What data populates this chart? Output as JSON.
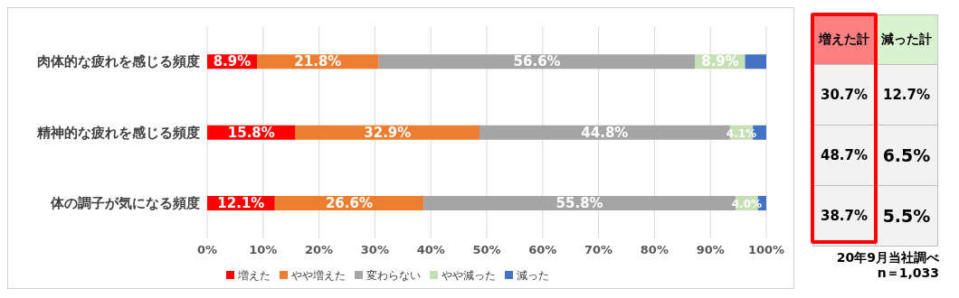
{
  "chart_data": [
    {
      "type": "bar",
      "orientation": "horizontal",
      "stacked": true,
      "categories": [
        "肉体的な疲れを感じる頻度",
        "精神的な疲れを感じる頻度",
        "体の調子が気になる頻度"
      ],
      "series": [
        {
          "name": "増えた",
          "color": "#ff0000",
          "values": [
            8.9,
            15.8,
            12.1
          ],
          "value_labels": [
            "8.9%",
            "15.8%",
            "12.1%"
          ]
        },
        {
          "name": "やや増えた",
          "color": "#ed7d31",
          "values": [
            21.8,
            32.9,
            26.6
          ],
          "value_labels": [
            "21.8%",
            "32.9%",
            "26.6%"
          ]
        },
        {
          "name": "変わらない",
          "color": "#a5a5a5",
          "values": [
            56.6,
            44.8,
            55.8
          ],
          "value_labels": [
            "56.6%",
            "44.8%",
            "55.8%"
          ]
        },
        {
          "name": "やや減った",
          "color": "#c5e0b4",
          "values": [
            8.9,
            4.1,
            4.0
          ],
          "value_labels": [
            "8.9%",
            "4.1%",
            "4.0%"
          ]
        },
        {
          "name": "減った",
          "color": "#4472c4",
          "values": [
            3.8,
            2.4,
            1.5
          ]
        }
      ],
      "xlim": [
        0,
        100
      ],
      "xticks": [
        {
          "value": 0,
          "label": "0%"
        },
        {
          "value": 10,
          "label": "10%"
        },
        {
          "value": 20,
          "label": "20%"
        },
        {
          "value": 30,
          "label": "30%"
        },
        {
          "value": 40,
          "label": "40%"
        },
        {
          "value": 50,
          "label": "50%"
        },
        {
          "value": 60,
          "label": "60%"
        },
        {
          "value": 70,
          "label": "70%"
        },
        {
          "value": 80,
          "label": "80%"
        },
        {
          "value": 90,
          "label": "90%"
        },
        {
          "value": 100,
          "label": "100%"
        }
      ],
      "grid": "x",
      "legend": "bottom"
    },
    {
      "type": "other",
      "categories": [
        "増えた計",
        "減った計"
      ],
      "cell_labels": [
        [
          "30.7%",
          "12.7%"
        ],
        [
          "48.7%",
          "6.5%"
        ],
        [
          "38.7%",
          "5.5%"
        ]
      ],
      "annotations": [
        "20年9月当社調べ",
        "n＝1,033"
      ]
    }
  ]
}
